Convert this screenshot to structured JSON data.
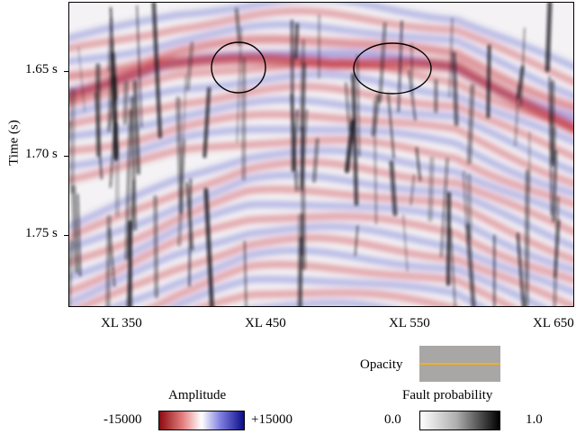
{
  "y_axis": {
    "title": "Time (s)",
    "ticks": [
      "1.65 s",
      "1.70 s",
      "1.75 s"
    ]
  },
  "x_axis": {
    "ticks": [
      "XL 350",
      "XL 450",
      "XL 550",
      "XL 650"
    ]
  },
  "opacity": {
    "label": "Opacity",
    "swatch_color": "#a9a6a6",
    "line_color": "#f2b01a"
  },
  "amplitude_bar": {
    "title": "Amplitude",
    "min_label": "-15000",
    "max_label": "+15000",
    "colors": [
      "#8b0a10",
      "#ffffff",
      "#0b0d8a"
    ]
  },
  "fault_bar": {
    "title": "Fault probability",
    "min_label": "0.0",
    "max_label": "1.0",
    "colors": [
      "#ffffff",
      "#000000"
    ]
  }
}
